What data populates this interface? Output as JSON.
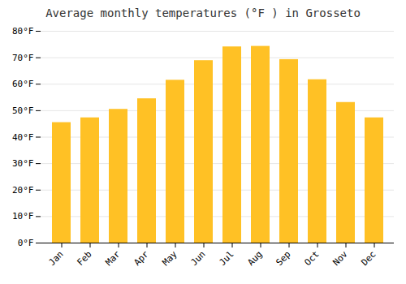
{
  "chart_data": {
    "type": "bar",
    "title": "Average monthly temperatures (°F ) in Grosseto",
    "categories": [
      "Jan",
      "Feb",
      "Mar",
      "Apr",
      "May",
      "Jun",
      "Jul",
      "Aug",
      "Sep",
      "Oct",
      "Nov",
      "Dec"
    ],
    "values": [
      45.5,
      47.3,
      50.5,
      54.5,
      61.5,
      68.9,
      74.1,
      74.3,
      69.3,
      61.7,
      53.1,
      47.3
    ],
    "color": "#FFC125",
    "ylim": [
      0,
      80
    ],
    "yticks": [
      {
        "value": 0,
        "label": "0°F"
      },
      {
        "value": 10,
        "label": "10°F"
      },
      {
        "value": 20,
        "label": "20°F"
      },
      {
        "value": 30,
        "label": "30°F"
      },
      {
        "value": 40,
        "label": "40°F"
      },
      {
        "value": 50,
        "label": "50°F"
      },
      {
        "value": 60,
        "label": "60°F"
      },
      {
        "value": 70,
        "label": "70°F"
      },
      {
        "value": 80,
        "label": "80°F"
      }
    ],
    "grid": true
  }
}
